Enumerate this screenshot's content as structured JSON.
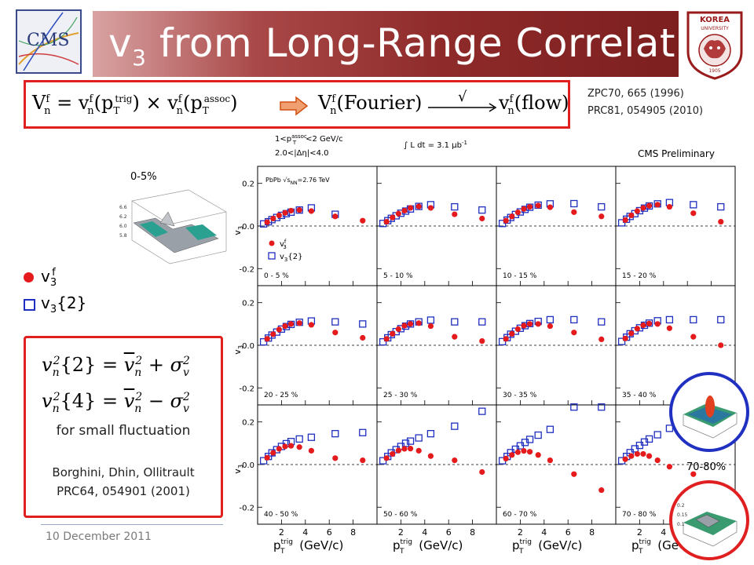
{
  "header": {
    "title": "v",
    "title_sub": "3",
    "title_rest": " from Long-Range Correlations"
  },
  "logos": {
    "cms_text": "CMS",
    "korea_top": "KOREA",
    "korea_bottom": "UNIVERSITY",
    "korea_year": "1905"
  },
  "formula": {
    "f1": "V",
    "f2": "= v",
    "f3": "(p",
    "trig": "trig",
    "f4": ") × v",
    "f5": "(p",
    "assoc": "assoc",
    "f6": ")",
    "f7": "V",
    "f8": "(Fourier)",
    "sqrt": "√",
    "f9": "v",
    "f10": "(flow)",
    "sup_f": "f",
    "sub_n": "n",
    "sub_T": "T"
  },
  "references": {
    "ref1": "ZPC70, 665 (1996)",
    "ref2": "PRC81, 054905 (2010)"
  },
  "insets": {
    "central_label": "0-5%",
    "peripheral_label": "70-80%"
  },
  "left_legend": {
    "item1": "v",
    "item1_sub": "3",
    "item1_sup": "f",
    "item2": "v",
    "item2_sub": "3",
    "item2_rest": "{2}"
  },
  "left_box": {
    "eq1_lhs": "v",
    "eq1_arg": "{2} = ",
    "eq2_arg": "{4} = ",
    "plus": " + σ",
    "minus": " − σ",
    "sub_n": "n",
    "sub_v": "v",
    "sup_2": "2",
    "note": "for small fluctuation",
    "authors": "Borghini, Dhin, Ollitrault",
    "citation": "PRC64, 054901 (2001)"
  },
  "footer": {
    "date": "10 December 2011"
  },
  "chart_data": {
    "type": "scatter",
    "header_assoc": "1<p",
    "header_assoc_sup": "assoc",
    "header_assoc_sub": "T",
    "header_assoc_rest": "<2 GeV/c",
    "header_deta": "2.0<|Δη|<4.0",
    "lumi": "∫ L dt = 3.1 μb",
    "lumi_sup": "-1",
    "preliminary": "CMS Preliminary",
    "energy": "PbPb √s",
    "energy_sub": "NN",
    "energy_rest": "=2.76 TeV",
    "ylabel": "v",
    "ylabel_sub": "3",
    "ylabel_sup": "f",
    "xlabel": "p",
    "xlabel_sup": "trig",
    "xlabel_sub": "T",
    "xlabel_rest": " (GeV/c)",
    "xlim": [
      0,
      10
    ],
    "ylim": [
      -0.28,
      0.28
    ],
    "xticks": [
      2,
      4,
      6,
      8
    ],
    "xticks_partial": [
      2,
      4,
      6
    ],
    "yticks": [
      0.2,
      0,
      -0.2
    ],
    "ytick_labels": [
      "0.2",
      "0.0",
      "-0.2"
    ],
    "legend_f": "v",
    "legend_f_sup": "f",
    "legend_f_sub": "3",
    "legend_2": "v",
    "legend_2_sub": "3",
    "legend_2_rest": "{2}",
    "series": [
      {
        "name": "v3f",
        "color": "#e41a1c",
        "marker": "circle"
      },
      {
        "name": "v3{2}",
        "color": "#1f2fbf",
        "marker": "square"
      }
    ],
    "panels": [
      {
        "label": "0 - 5 %",
        "filled": [
          [
            0.8,
            0.018
          ],
          [
            1.3,
            0.035
          ],
          [
            1.8,
            0.05
          ],
          [
            2.3,
            0.062
          ],
          [
            2.8,
            0.072
          ],
          [
            3.5,
            0.075
          ],
          [
            4.5,
            0.07
          ],
          [
            6.5,
            0.045
          ],
          [
            8.8,
            0.025
          ]
        ],
        "open": [
          [
            0.5,
            0.01
          ],
          [
            0.9,
            0.02
          ],
          [
            1.2,
            0.03
          ],
          [
            1.6,
            0.04
          ],
          [
            2,
            0.05
          ],
          [
            2.4,
            0.058
          ],
          [
            2.8,
            0.065
          ],
          [
            3.5,
            0.075
          ],
          [
            4.5,
            0.085
          ],
          [
            6.5,
            0.055
          ]
        ]
      },
      {
        "label": "5 - 10 %",
        "filled": [
          [
            0.8,
            0.02
          ],
          [
            1.3,
            0.04
          ],
          [
            1.8,
            0.058
          ],
          [
            2.3,
            0.072
          ],
          [
            2.8,
            0.085
          ],
          [
            3.5,
            0.092
          ],
          [
            4.5,
            0.085
          ],
          [
            6.5,
            0.055
          ],
          [
            8.8,
            0.035
          ]
        ],
        "open": [
          [
            0.5,
            0.012
          ],
          [
            0.9,
            0.025
          ],
          [
            1.2,
            0.036
          ],
          [
            1.6,
            0.048
          ],
          [
            2,
            0.06
          ],
          [
            2.4,
            0.07
          ],
          [
            2.8,
            0.08
          ],
          [
            3.5,
            0.092
          ],
          [
            4.5,
            0.1
          ],
          [
            6.5,
            0.09
          ],
          [
            8.8,
            0.075
          ]
        ]
      },
      {
        "label": "10 - 15 %",
        "filled": [
          [
            0.8,
            0.025
          ],
          [
            1.3,
            0.045
          ],
          [
            1.8,
            0.064
          ],
          [
            2.3,
            0.08
          ],
          [
            2.8,
            0.09
          ],
          [
            3.5,
            0.096
          ],
          [
            4.5,
            0.088
          ],
          [
            6.5,
            0.065
          ],
          [
            8.8,
            0.045
          ]
        ],
        "open": [
          [
            0.5,
            0.012
          ],
          [
            0.9,
            0.028
          ],
          [
            1.2,
            0.04
          ],
          [
            1.6,
            0.054
          ],
          [
            2,
            0.066
          ],
          [
            2.4,
            0.078
          ],
          [
            2.8,
            0.088
          ],
          [
            3.5,
            0.098
          ],
          [
            4.5,
            0.104
          ],
          [
            6.5,
            0.105
          ],
          [
            8.8,
            0.09
          ]
        ]
      },
      {
        "label": "15 - 20 %",
        "filled": [
          [
            0.8,
            0.028
          ],
          [
            1.3,
            0.05
          ],
          [
            1.8,
            0.07
          ],
          [
            2.3,
            0.085
          ],
          [
            2.8,
            0.095
          ],
          [
            3.5,
            0.1
          ],
          [
            4.5,
            0.09
          ],
          [
            6.5,
            0.06
          ],
          [
            8.8,
            0.02
          ]
        ],
        "open": [
          [
            0.5,
            0.015
          ],
          [
            0.9,
            0.032
          ],
          [
            1.2,
            0.045
          ],
          [
            1.6,
            0.058
          ],
          [
            2,
            0.072
          ],
          [
            2.4,
            0.084
          ],
          [
            2.8,
            0.094
          ],
          [
            3.5,
            0.104
          ],
          [
            4.5,
            0.11
          ],
          [
            6.5,
            0.1
          ],
          [
            8.8,
            0.09
          ]
        ]
      },
      {
        "label": "20 - 25 %",
        "filled": [
          [
            0.8,
            0.03
          ],
          [
            1.3,
            0.052
          ],
          [
            1.8,
            0.074
          ],
          [
            2.3,
            0.09
          ],
          [
            2.8,
            0.1
          ],
          [
            3.5,
            0.104
          ],
          [
            4.5,
            0.096
          ],
          [
            6.5,
            0.06
          ],
          [
            8.8,
            0.035
          ]
        ],
        "open": [
          [
            0.5,
            0.016
          ],
          [
            0.9,
            0.034
          ],
          [
            1.2,
            0.048
          ],
          [
            1.6,
            0.062
          ],
          [
            2,
            0.076
          ],
          [
            2.4,
            0.088
          ],
          [
            2.8,
            0.098
          ],
          [
            3.5,
            0.108
          ],
          [
            4.5,
            0.114
          ],
          [
            6.5,
            0.11
          ],
          [
            8.8,
            0.1
          ]
        ]
      },
      {
        "label": "25 - 30 %",
        "filled": [
          [
            0.8,
            0.03
          ],
          [
            1.3,
            0.054
          ],
          [
            1.8,
            0.076
          ],
          [
            2.3,
            0.092
          ],
          [
            2.8,
            0.1
          ],
          [
            3.5,
            0.104
          ],
          [
            4.5,
            0.09
          ],
          [
            6.5,
            0.04
          ],
          [
            8.8,
            0.02
          ]
        ],
        "open": [
          [
            0.5,
            0.016
          ],
          [
            0.9,
            0.035
          ],
          [
            1.2,
            0.05
          ],
          [
            1.6,
            0.064
          ],
          [
            2,
            0.078
          ],
          [
            2.4,
            0.09
          ],
          [
            2.8,
            0.1
          ],
          [
            3.5,
            0.11
          ],
          [
            4.5,
            0.118
          ],
          [
            6.5,
            0.11
          ],
          [
            8.8,
            0.11
          ]
        ]
      },
      {
        "label": "30 - 35 %",
        "filled": [
          [
            0.8,
            0.03
          ],
          [
            1.3,
            0.054
          ],
          [
            1.8,
            0.076
          ],
          [
            2.3,
            0.092
          ],
          [
            2.8,
            0.1
          ],
          [
            3.5,
            0.1
          ],
          [
            4.5,
            0.09
          ],
          [
            6.5,
            0.06
          ],
          [
            8.8,
            0.028
          ]
        ],
        "open": [
          [
            0.5,
            0.017
          ],
          [
            0.9,
            0.036
          ],
          [
            1.2,
            0.052
          ],
          [
            1.6,
            0.066
          ],
          [
            2,
            0.08
          ],
          [
            2.4,
            0.092
          ],
          [
            2.8,
            0.102
          ],
          [
            3.5,
            0.112
          ],
          [
            4.5,
            0.12
          ],
          [
            6.5,
            0.12
          ],
          [
            8.8,
            0.11
          ]
        ]
      },
      {
        "label": "35 - 40 %",
        "filled": [
          [
            0.8,
            0.032
          ],
          [
            1.3,
            0.056
          ],
          [
            1.8,
            0.078
          ],
          [
            2.3,
            0.094
          ],
          [
            2.8,
            0.102
          ],
          [
            3.5,
            0.1
          ],
          [
            4.5,
            0.08
          ],
          [
            6.5,
            0.04
          ],
          [
            8.8,
            0.0
          ]
        ],
        "open": [
          [
            0.5,
            0.018
          ],
          [
            0.9,
            0.038
          ],
          [
            1.2,
            0.054
          ],
          [
            1.6,
            0.068
          ],
          [
            2,
            0.082
          ],
          [
            2.4,
            0.094
          ],
          [
            2.8,
            0.104
          ],
          [
            3.5,
            0.115
          ],
          [
            4.5,
            0.12
          ],
          [
            6.5,
            0.12
          ],
          [
            8.8,
            0.12
          ]
        ]
      },
      {
        "label": "40 - 50 %",
        "filled": [
          [
            0.8,
            0.032
          ],
          [
            1.3,
            0.055
          ],
          [
            1.8,
            0.074
          ],
          [
            2.3,
            0.085
          ],
          [
            2.8,
            0.088
          ],
          [
            3.5,
            0.082
          ],
          [
            4.5,
            0.065
          ],
          [
            6.5,
            0.03
          ],
          [
            8.8,
            0.02
          ]
        ],
        "open": [
          [
            0.5,
            0.018
          ],
          [
            0.9,
            0.038
          ],
          [
            1.2,
            0.055
          ],
          [
            1.6,
            0.07
          ],
          [
            2,
            0.085
          ],
          [
            2.4,
            0.098
          ],
          [
            2.8,
            0.108
          ],
          [
            3.5,
            0.12
          ],
          [
            4.5,
            0.128
          ],
          [
            6.5,
            0.145
          ],
          [
            8.8,
            0.15
          ]
        ]
      },
      {
        "label": "50 - 60 %",
        "filled": [
          [
            0.8,
            0.03
          ],
          [
            1.3,
            0.05
          ],
          [
            1.8,
            0.066
          ],
          [
            2.3,
            0.074
          ],
          [
            2.8,
            0.075
          ],
          [
            3.5,
            0.065
          ],
          [
            4.5,
            0.04
          ],
          [
            6.5,
            0.02
          ],
          [
            8.8,
            -0.035
          ]
        ],
        "open": [
          [
            0.5,
            0.018
          ],
          [
            0.9,
            0.038
          ],
          [
            1.2,
            0.055
          ],
          [
            1.6,
            0.07
          ],
          [
            2,
            0.085
          ],
          [
            2.4,
            0.1
          ],
          [
            2.8,
            0.11
          ],
          [
            3.5,
            0.125
          ],
          [
            4.5,
            0.145
          ],
          [
            6.5,
            0.18
          ],
          [
            8.8,
            0.25
          ]
        ]
      },
      {
        "label": "60 - 70 %",
        "filled": [
          [
            0.8,
            0.028
          ],
          [
            1.3,
            0.045
          ],
          [
            1.8,
            0.058
          ],
          [
            2.3,
            0.064
          ],
          [
            2.8,
            0.06
          ],
          [
            3.5,
            0.045
          ],
          [
            4.5,
            0.02
          ],
          [
            6.5,
            -0.045
          ],
          [
            8.8,
            -0.12
          ]
        ],
        "open": [
          [
            0.5,
            0.018
          ],
          [
            0.9,
            0.038
          ],
          [
            1.2,
            0.056
          ],
          [
            1.6,
            0.072
          ],
          [
            2,
            0.088
          ],
          [
            2.4,
            0.104
          ],
          [
            2.8,
            0.118
          ],
          [
            3.5,
            0.138
          ],
          [
            4.5,
            0.165
          ],
          [
            6.5,
            0.27
          ],
          [
            8.8,
            0.27
          ]
        ]
      },
      {
        "label": "70 - 80 %",
        "filled": [
          [
            0.8,
            0.025
          ],
          [
            1.3,
            0.04
          ],
          [
            1.8,
            0.05
          ],
          [
            2.3,
            0.05
          ],
          [
            2.8,
            0.04
          ],
          [
            3.5,
            0.02
          ],
          [
            4.5,
            -0.01
          ],
          [
            6.5,
            -0.045
          ],
          [
            8.8,
            -0.15
          ]
        ],
        "open": [
          [
            0.5,
            0.018
          ],
          [
            0.9,
            0.038
          ],
          [
            1.2,
            0.056
          ],
          [
            1.6,
            0.074
          ],
          [
            2,
            0.09
          ],
          [
            2.4,
            0.106
          ],
          [
            2.8,
            0.12
          ],
          [
            3.5,
            0.14
          ],
          [
            4.5,
            0.17
          ],
          [
            6.5,
            0.25
          ],
          [
            8.8,
            0.27
          ]
        ]
      }
    ]
  },
  "colors": {
    "accent_red": "#e02020",
    "marker_red": "#e41a1c",
    "marker_blue": "#1f2fbf",
    "title_bar": "#8e2a2a"
  }
}
